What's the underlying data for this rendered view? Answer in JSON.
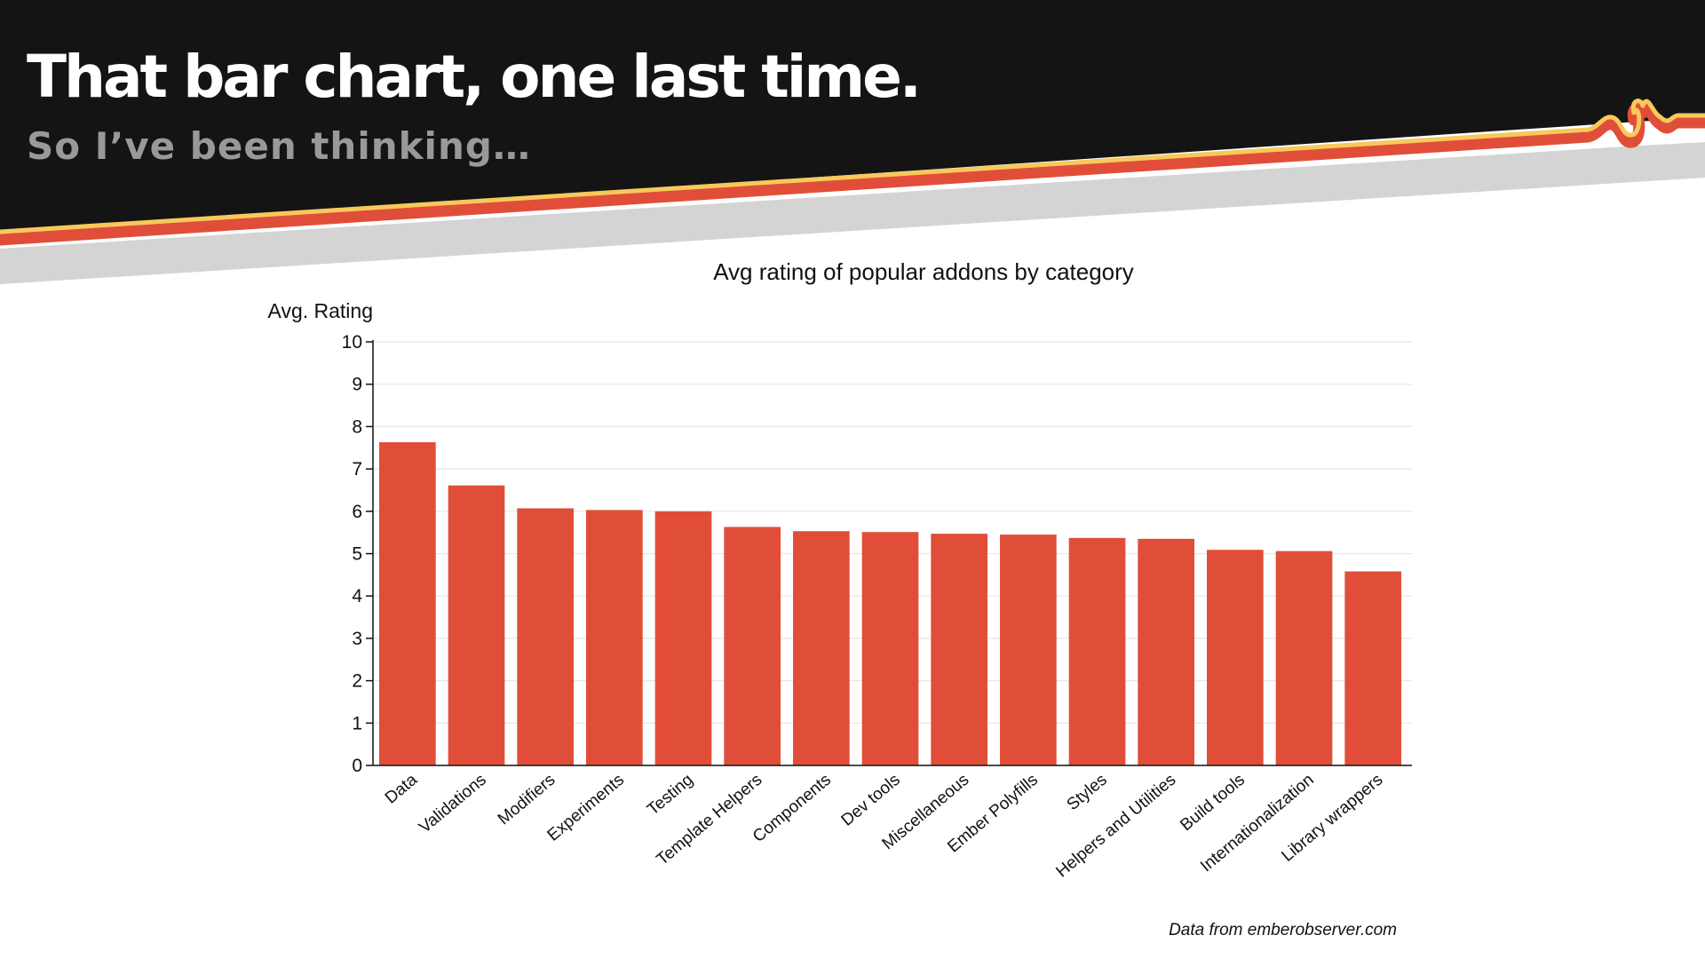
{
  "slide": {
    "title": "That bar chart, one last time.",
    "subtitle": "So I’ve been thinking…"
  },
  "colors": {
    "header_bg": "#151414",
    "accent_red": "#e04e39",
    "accent_yellow": "#f7c95b",
    "band_gray": "#d5d4d4",
    "subtitle_gray": "#9a9898",
    "bar": "#e04e39"
  },
  "chart_data": {
    "type": "bar",
    "title": "Avg rating of popular addons by category",
    "ylabel": "Avg. Rating",
    "xlabel": "",
    "ylim": [
      0,
      10
    ],
    "yticks": [
      0,
      1,
      2,
      3,
      4,
      5,
      6,
      7,
      8,
      9,
      10
    ],
    "grid": true,
    "categories": [
      "Data",
      "Validations",
      "Modifiers",
      "Experiments",
      "Testing",
      "Template Helpers",
      "Components",
      "Dev tools",
      "Miscellaneous",
      "Ember Polyfills",
      "Styles",
      "Helpers and Utilities",
      "Build tools",
      "Internationalization",
      "Library wrappers"
    ],
    "values": [
      7.63,
      6.61,
      6.07,
      6.03,
      6.0,
      5.63,
      5.53,
      5.51,
      5.47,
      5.45,
      5.37,
      5.35,
      5.09,
      5.06,
      4.58
    ],
    "annotation": "Data from emberobserver.com"
  }
}
